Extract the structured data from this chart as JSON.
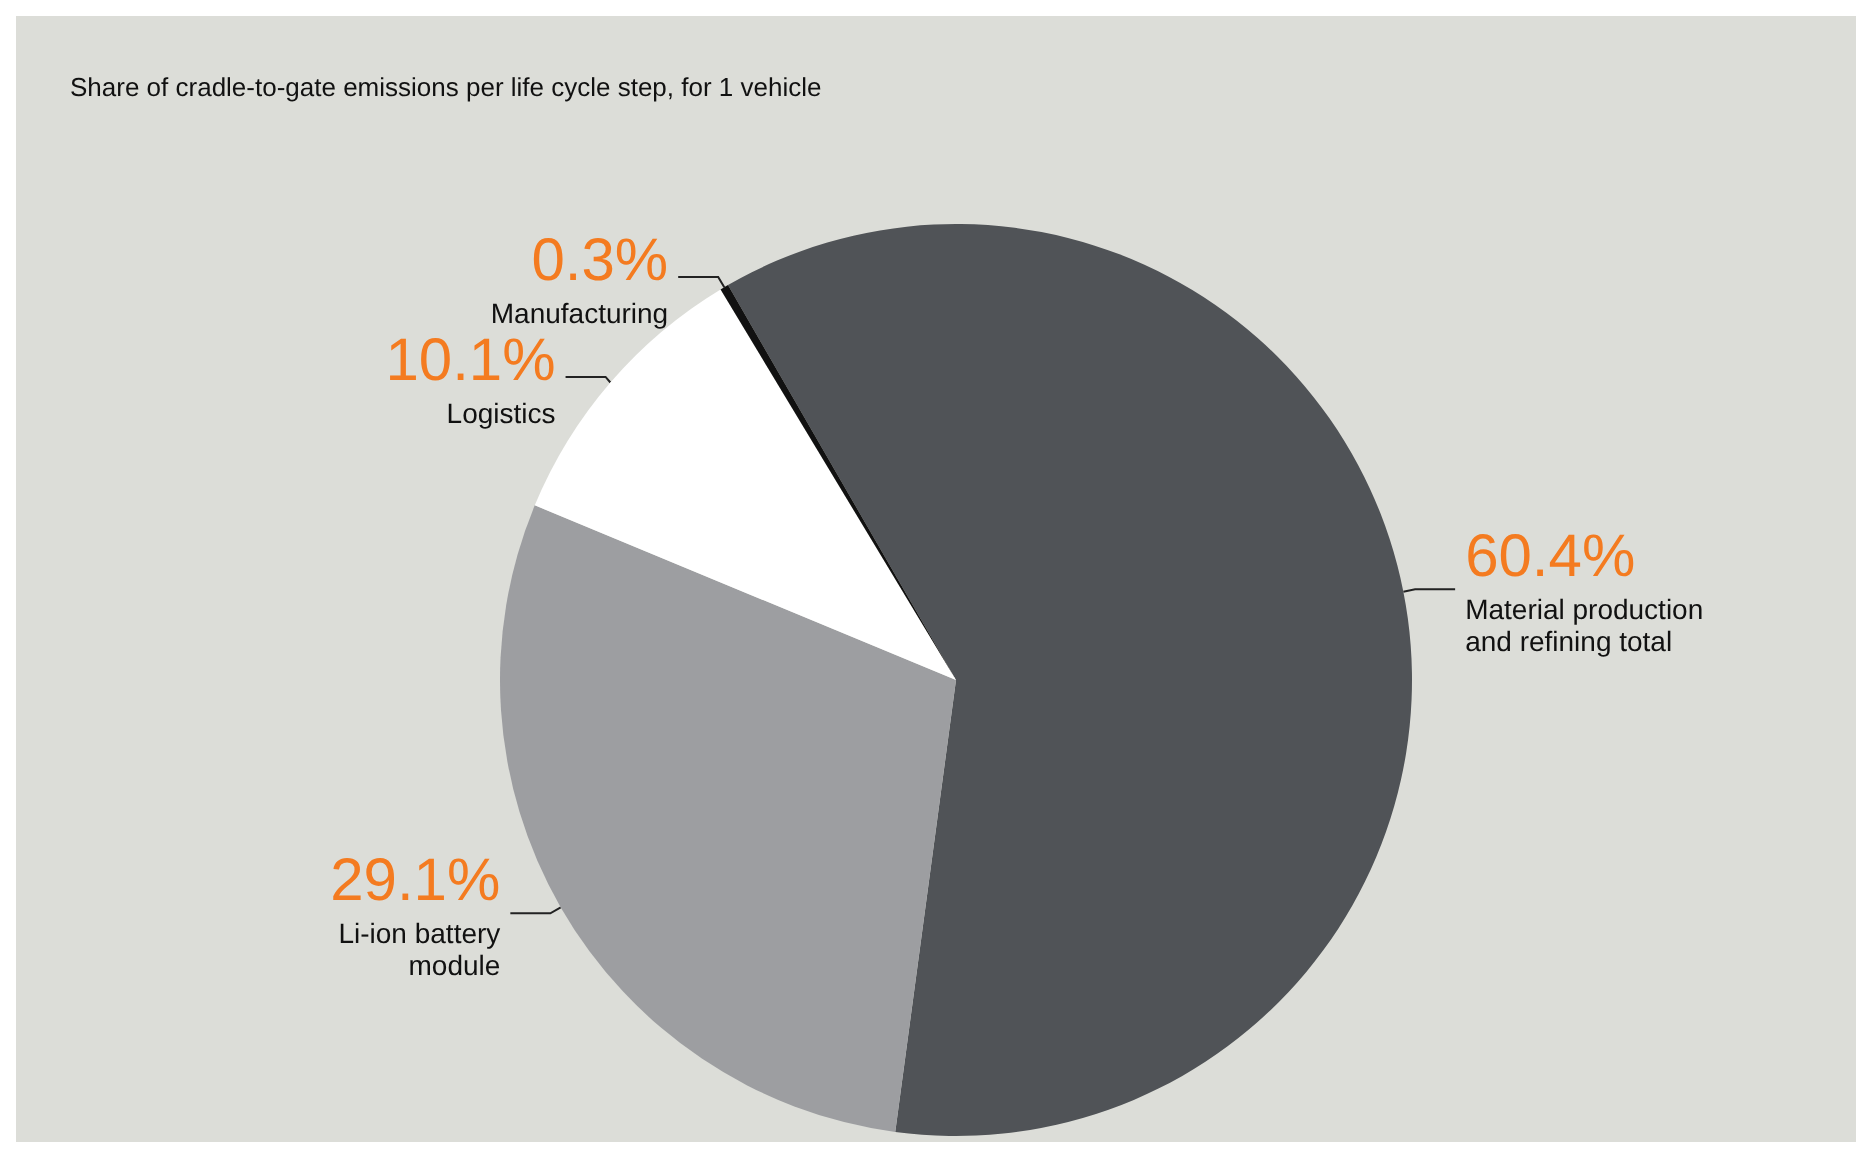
{
  "chart_data": {
    "type": "pie",
    "title": "Share of cradle-to-gate emissions per life cycle step, for 1 vehicle",
    "categories": [
      "Material production and refining total",
      "Li-ion battery module",
      "Logistics",
      "Manufacturing"
    ],
    "values": [
      60.4,
      29.1,
      10.1,
      0.3
    ],
    "colors": [
      "#505357",
      "#9d9ea1",
      "#ffffff",
      "#111111"
    ],
    "value_labels": [
      "60.4%",
      "29.1%",
      "10.1%",
      "0.3%"
    ],
    "legend": false
  }
}
